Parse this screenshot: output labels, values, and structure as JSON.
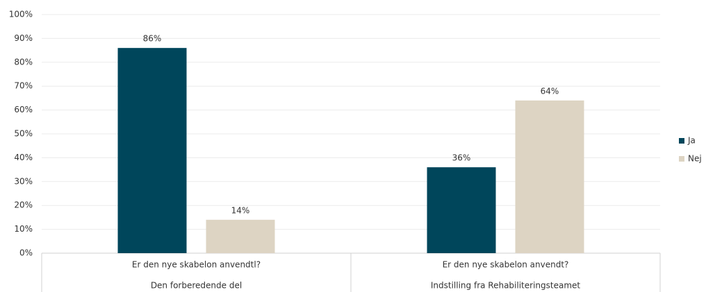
{
  "chart_data": {
    "type": "bar",
    "categories": [
      "Er den nye skabelon anvendtl?",
      "Er den nye skabelon anvendt?"
    ],
    "category_groups": [
      "Den forberedende del",
      "Indstilling fra Rehabiliteringsteamet"
    ],
    "series": [
      {
        "name": "Ja",
        "color": "#00465b",
        "values": [
          86,
          36
        ],
        "value_labels": [
          "86%",
          "36%"
        ]
      },
      {
        "name": "Nej",
        "color": "#ddd4c3",
        "values": [
          14,
          64
        ],
        "value_labels": [
          "14%",
          "64%"
        ]
      }
    ],
    "ylim": [
      0,
      100
    ],
    "yticks": [
      {
        "value": 0,
        "label": "0%"
      },
      {
        "value": 10,
        "label": "10%"
      },
      {
        "value": 20,
        "label": "20%"
      },
      {
        "value": 30,
        "label": "30%"
      },
      {
        "value": 40,
        "label": "40%"
      },
      {
        "value": 50,
        "label": "50%"
      },
      {
        "value": 60,
        "label": "60%"
      },
      {
        "value": 70,
        "label": "70%"
      },
      {
        "value": 80,
        "label": "80%"
      },
      {
        "value": 90,
        "label": "90%"
      },
      {
        "value": 100,
        "label": "100%"
      }
    ],
    "grid": true,
    "legend": "right"
  }
}
